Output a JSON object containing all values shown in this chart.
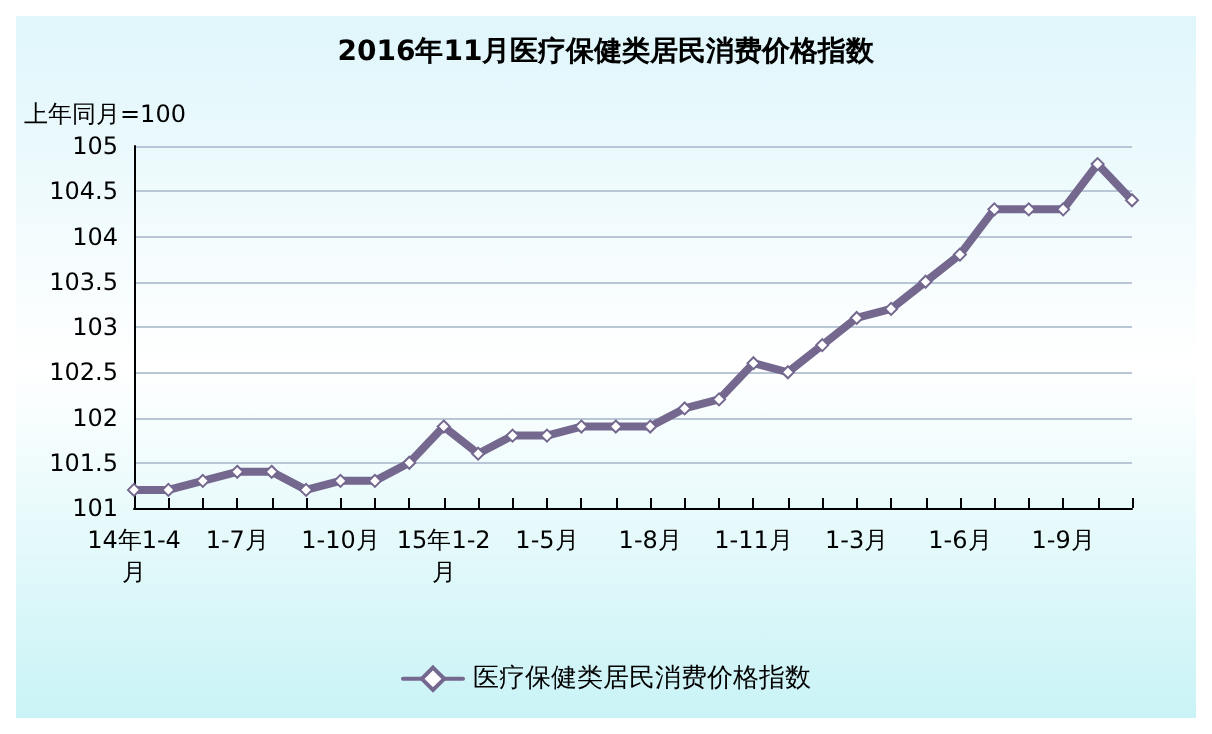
{
  "chart_data": {
    "type": "line",
    "title": "2016年11月医疗保健类居民消费价格指数",
    "ylabel": "上年同月=100",
    "categories": [
      "14年1-4月",
      null,
      null,
      "1-7月",
      null,
      null,
      "1-10月",
      null,
      null,
      "15年1-2月",
      null,
      null,
      "1-5月",
      null,
      null,
      "1-8月",
      null,
      null,
      "1-11月",
      null,
      null,
      "1-3月",
      null,
      null,
      "1-6月",
      null,
      null,
      "1-9月",
      null,
      null
    ],
    "series": [
      {
        "name": "医疗保健类居民消费价格指数",
        "color": "#74688f",
        "values": [
          101.2,
          101.2,
          101.3,
          101.4,
          101.4,
          101.2,
          101.3,
          101.3,
          101.5,
          101.9,
          101.6,
          101.8,
          101.8,
          101.9,
          101.9,
          101.9,
          102.1,
          102.2,
          102.6,
          102.5,
          102.8,
          103.1,
          103.2,
          103.5,
          103.8,
          104.3,
          104.3,
          104.3,
          104.8,
          104.4
        ]
      }
    ],
    "ylim": [
      101,
      105
    ],
    "yticks": [
      101,
      101.5,
      102,
      102.5,
      103,
      103.5,
      104,
      104.5,
      105
    ],
    "grid": "y",
    "legend": "bottom",
    "marker": "diamond",
    "line_style": "solid"
  }
}
